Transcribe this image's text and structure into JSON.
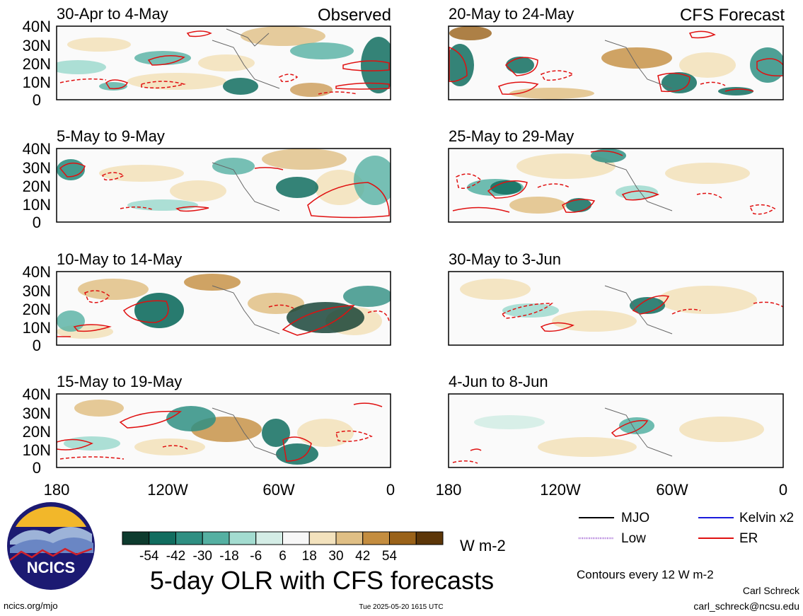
{
  "header": {
    "observed_label": "Observed",
    "forecast_label": "CFS Forecast"
  },
  "axes": {
    "lat_labels": [
      "40N",
      "30N",
      "20N",
      "10N",
      "0"
    ],
    "lon_labels": [
      "180",
      "120W",
      "60W",
      "0"
    ]
  },
  "panels": {
    "observed": [
      {
        "period": "30-Apr to 4-May"
      },
      {
        "period": "5-May to 9-May"
      },
      {
        "period": "10-May to 14-May"
      },
      {
        "period": "15-May to 19-May"
      }
    ],
    "forecast": [
      {
        "period": "20-May to 24-May"
      },
      {
        "period": "25-May to 29-May"
      },
      {
        "period": "30-May to 3-Jun"
      },
      {
        "period": "4-Jun to 8-Jun"
      }
    ]
  },
  "colorbar": {
    "tick_labels": [
      "-54",
      "-42",
      "-30",
      "-18",
      "-6",
      "6",
      "18",
      "30",
      "42",
      "54"
    ],
    "colors": [
      "#0d3b2e",
      "#116d5f",
      "#2f8f82",
      "#55b0a2",
      "#a3dcd0",
      "#d4ede6",
      "#f7f7f7",
      "#f3e2bd",
      "#e0bf85",
      "#c48d3f",
      "#9a6219",
      "#5c3608"
    ],
    "unit": "W m-2"
  },
  "legend": {
    "items": [
      {
        "label": "MJO",
        "color": "#000000",
        "style": "solid"
      },
      {
        "label": "Kelvin x2",
        "color": "#1a1adc",
        "style": "solid"
      },
      {
        "label": "Low",
        "color": "#9b59d0",
        "style": "dotted"
      },
      {
        "label": "ER",
        "color": "#e01010",
        "style": "solid"
      }
    ],
    "contour_note": "Contours every 12 W m-2"
  },
  "footer": {
    "title": "5-day OLR with CFS forecasts",
    "url": "ncics.org/mjo",
    "timestamp": "Tue 2025-05-20 1615 UTC",
    "author": "Carl Schreck",
    "email": "carl_schreck@ncsu.edu",
    "logo_text": "NCICS"
  }
}
